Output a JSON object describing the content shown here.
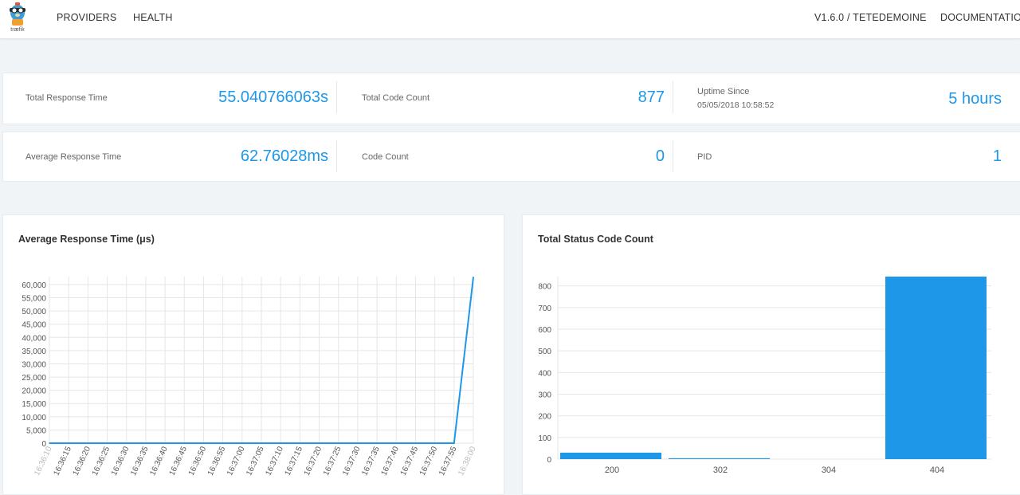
{
  "nav": {
    "logo_text": "træfik",
    "providers": "PROVIDERS",
    "health": "HEALTH",
    "version": "V1.6.0 / TETEDEMOINE",
    "documentation": "DOCUMENTATION"
  },
  "stats": {
    "total_response_time": {
      "label": "Total Response Time",
      "value": "55.040766063s"
    },
    "total_code_count": {
      "label": "Total Code Count",
      "value": "877"
    },
    "uptime": {
      "label": "Uptime Since",
      "since": "05/05/2018 10:58:52",
      "value": "5 hours"
    },
    "average_response_time": {
      "label": "Average Response Time",
      "value": "62.76028ms"
    },
    "code_count": {
      "label": "Code Count",
      "value": "0"
    },
    "pid": {
      "label": "PID",
      "value": "1"
    }
  },
  "colors": {
    "accent": "#1e97e8",
    "grid": "#e6e6e6"
  },
  "chart_data": [
    {
      "type": "line",
      "title": "Average Response Time (μs)",
      "x": [
        "16:36:10",
        "16:36:15",
        "16:36:20",
        "16:36:25",
        "16:36:30",
        "16:36:35",
        "16:36:40",
        "16:36:45",
        "16:36:50",
        "16:36:55",
        "16:37:00",
        "16:37:05",
        "16:37:10",
        "16:37:15",
        "16:37:20",
        "16:37:25",
        "16:37:30",
        "16:37:35",
        "16:37:40",
        "16:37:45",
        "16:37:50",
        "16:37:55",
        "16:38:00"
      ],
      "series": [
        {
          "values": [
            0,
            0,
            0,
            0,
            0,
            0,
            0,
            0,
            0,
            0,
            0,
            0,
            0,
            0,
            0,
            0,
            0,
            0,
            0,
            0,
            0,
            0,
            62760
          ]
        }
      ],
      "ylim": [
        0,
        63000
      ],
      "yticks": [
        0,
        5000,
        10000,
        15000,
        20000,
        25000,
        30000,
        35000,
        40000,
        45000,
        50000,
        55000,
        60000
      ],
      "ytick_labels": [
        "0",
        "5,000",
        "10,000",
        "15,000",
        "20,000",
        "25,000",
        "30,000",
        "35,000",
        "40,000",
        "45,000",
        "50,000",
        "55,000",
        "60,000"
      ],
      "grid": true
    },
    {
      "type": "bar",
      "title": "Total Status Code Count",
      "categories": [
        "200",
        "302",
        "304",
        "404"
      ],
      "values": [
        30,
        4,
        0,
        843
      ],
      "ylim": [
        0,
        843
      ],
      "yticks": [
        0,
        100,
        200,
        300,
        400,
        500,
        600,
        700,
        800
      ],
      "ytick_labels": [
        "0",
        "100",
        "200",
        "300",
        "400",
        "500",
        "600",
        "700",
        "800"
      ],
      "grid": true
    }
  ]
}
